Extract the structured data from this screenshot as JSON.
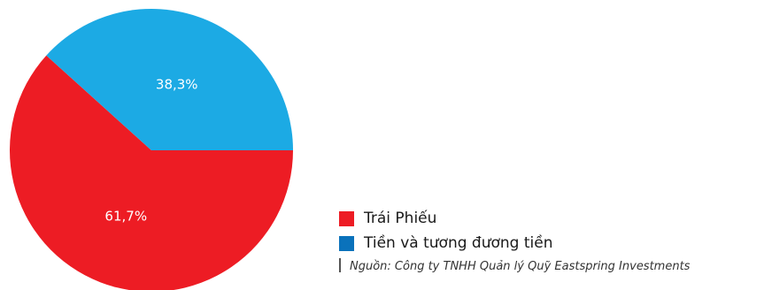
{
  "chart_data": {
    "type": "pie",
    "title": "",
    "slices": [
      {
        "label": "Trái Phiếu",
        "value": 61.7,
        "value_label": "61,7%",
        "color": "#ed1c24"
      },
      {
        "label": "Tiền và tương đương tiền",
        "value": 38.3,
        "value_label": "38,3%",
        "color": "#1caae4"
      }
    ],
    "legend_colors": [
      "#ed1c24",
      "#0a72bb"
    ],
    "legend_position": "bottom-right"
  },
  "source": "Nguồn: Công ty TNHH Quản lý Quỹ Eastspring Investments"
}
